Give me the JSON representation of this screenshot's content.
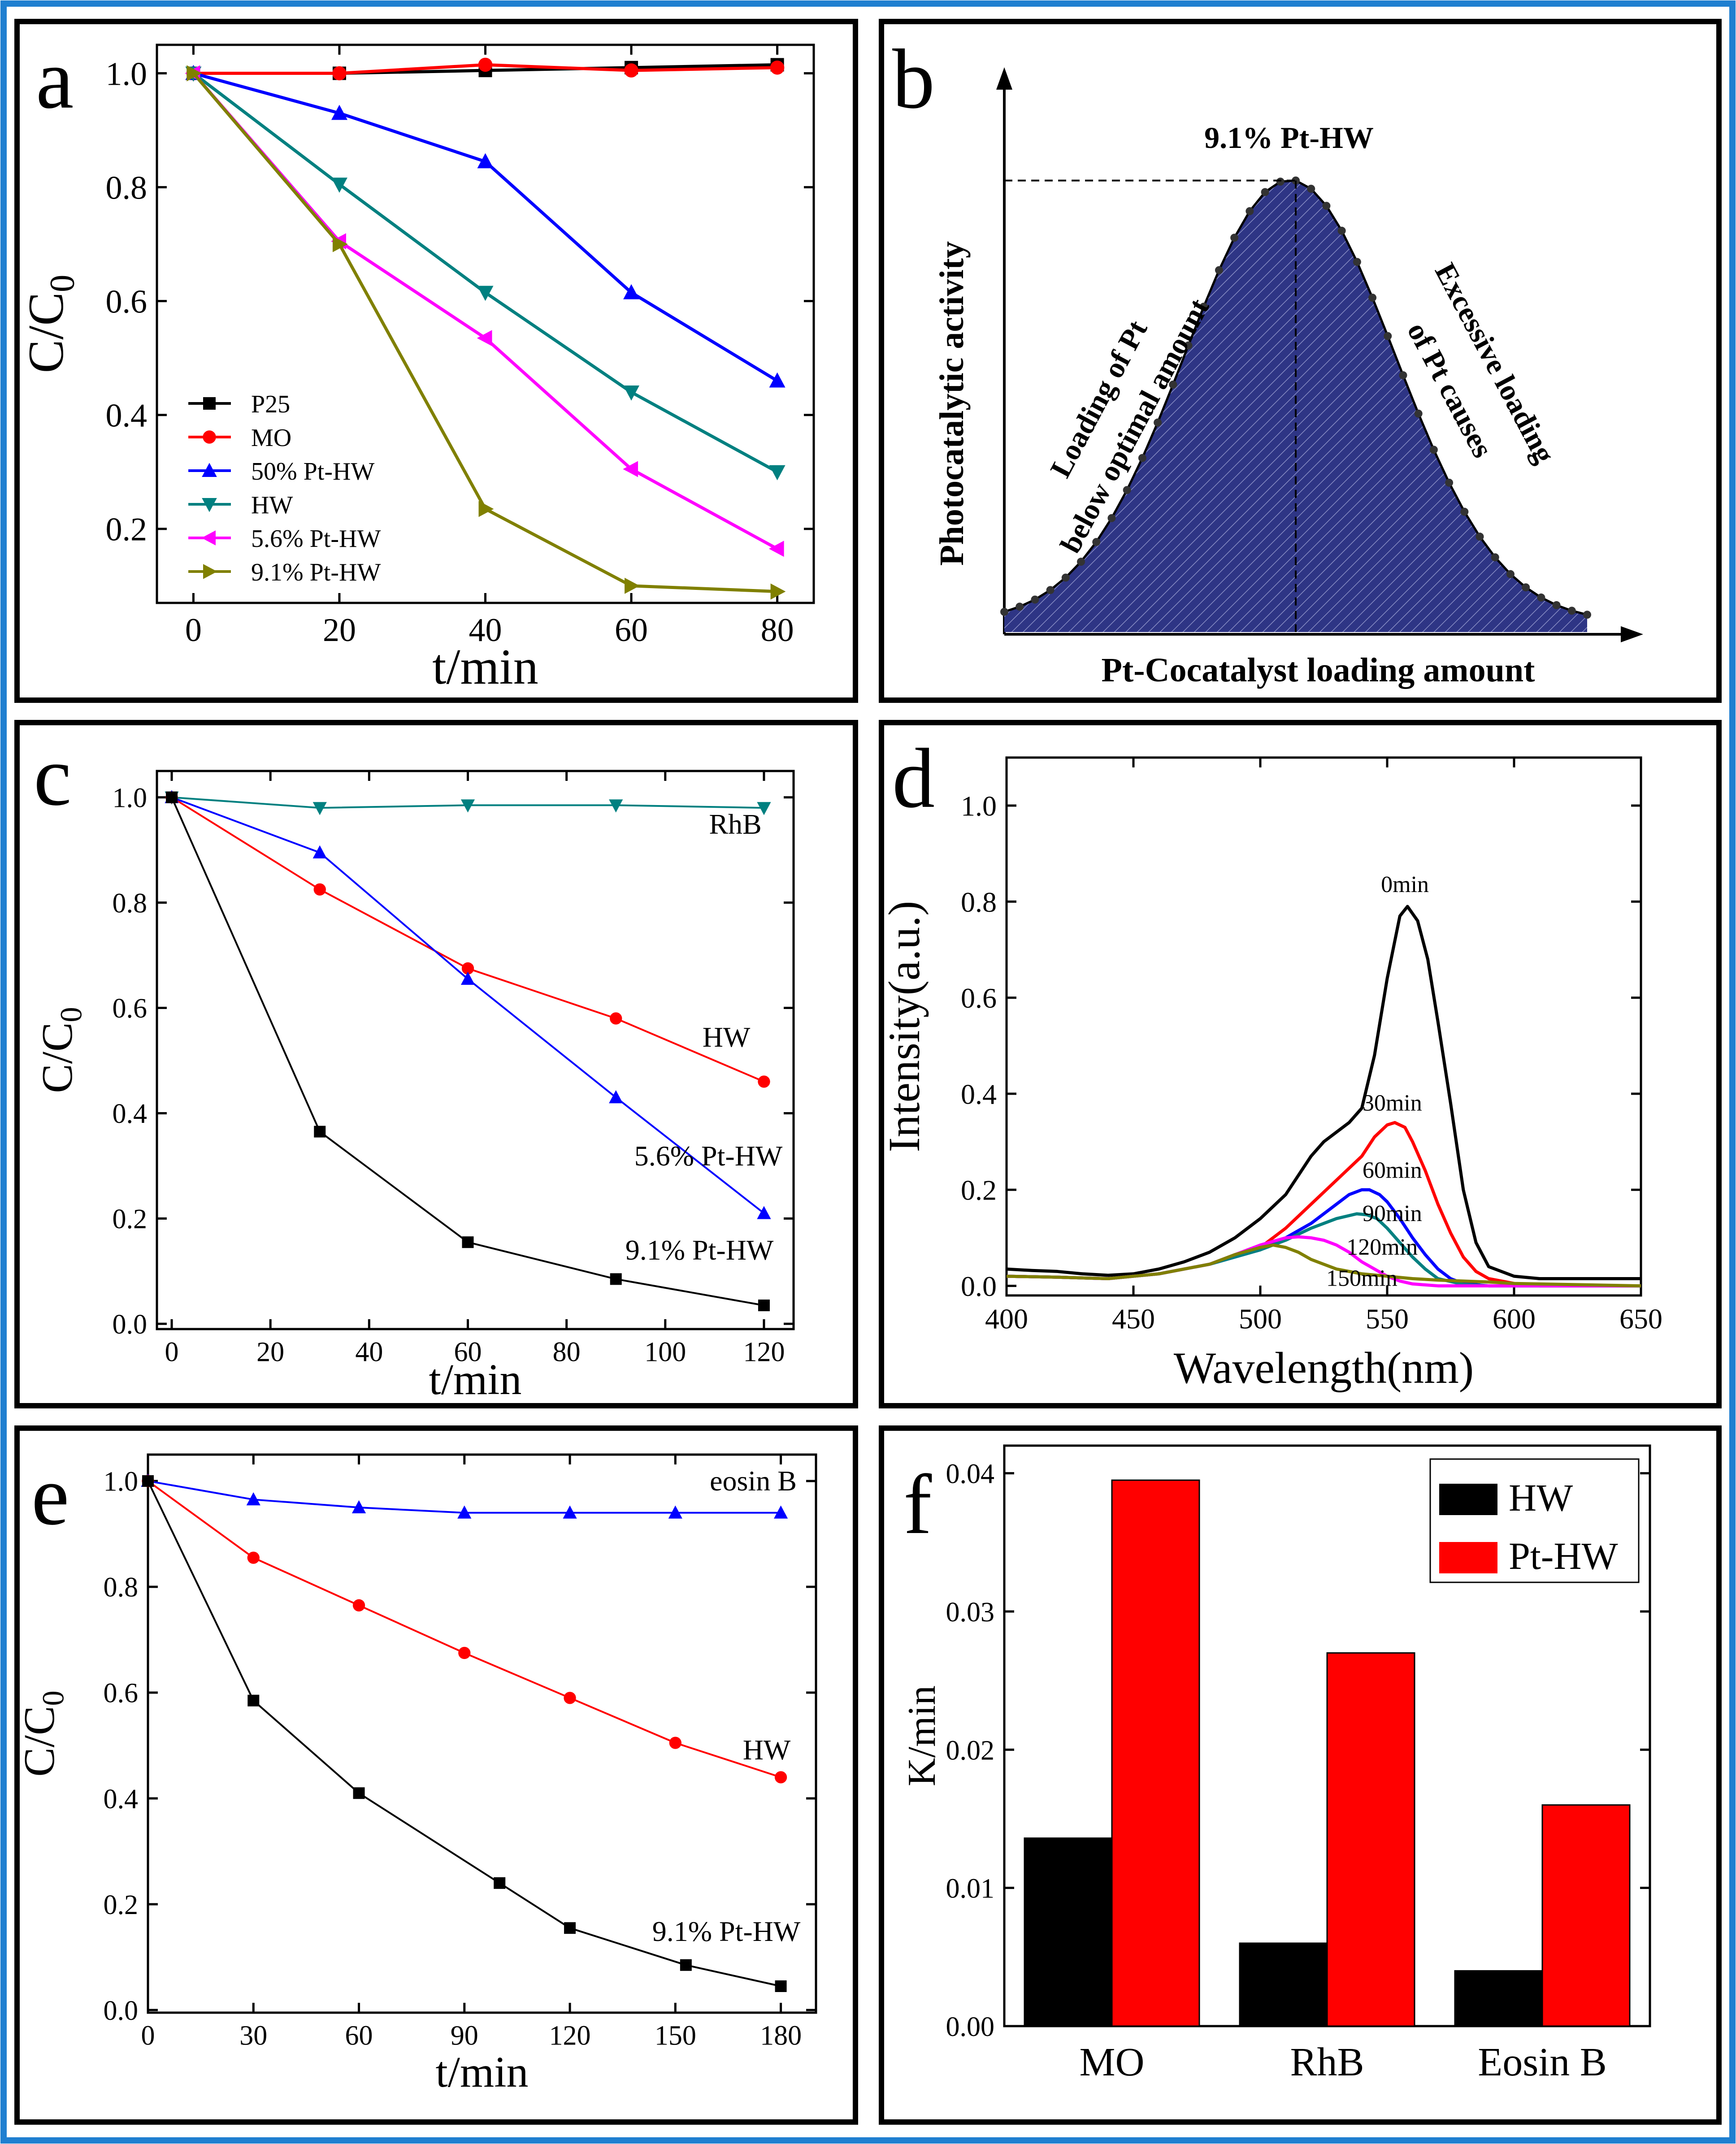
{
  "colors": {
    "outer_border": "#1f7fd0",
    "panel_border": "#000000",
    "black": "#000000",
    "red": "#ff0000",
    "blue": "#0000ff",
    "teal": "#008080",
    "magenta": "#ff00ff",
    "olive": "#808000",
    "navy_fill": "#2e3585",
    "bar_hw": "#000000",
    "bar_pthw": "#ff0000"
  },
  "chart_data": [
    {
      "panel": "a",
      "type": "line",
      "letter": "a",
      "xlabel": "t/min",
      "ylabel": "C/C",
      "ylabel_sub": "0",
      "xlim": [
        -5,
        85
      ],
      "ylim": [
        0.07,
        1.05
      ],
      "xticks": [
        0,
        20,
        40,
        60,
        80
      ],
      "yticks": [
        0.2,
        0.4,
        0.6,
        0.8,
        1.0
      ],
      "ytick_labels": [
        "0.2",
        "0.4",
        "0.6",
        "0.8",
        "1.0"
      ],
      "x": [
        0,
        20,
        40,
        60,
        80
      ],
      "legend_position": "lower-left",
      "series": [
        {
          "name": "P25",
          "color": "#000000",
          "marker": "square",
          "values": [
            1.0,
            1.0,
            1.005,
            1.01,
            1.015
          ]
        },
        {
          "name": "MO",
          "color": "#ff0000",
          "marker": "circle",
          "values": [
            1.0,
            1.0,
            1.015,
            1.005,
            1.01
          ]
        },
        {
          "name": "50% Pt-HW",
          "color": "#0000ff",
          "marker": "triangle-up",
          "values": [
            1.0,
            0.93,
            0.845,
            0.615,
            0.46
          ]
        },
        {
          "name": "HW",
          "color": "#008080",
          "marker": "triangle-down",
          "values": [
            1.0,
            0.805,
            0.615,
            0.44,
            0.3
          ]
        },
        {
          "name": "5.6% Pt-HW",
          "color": "#ff00ff",
          "marker": "triangle-left",
          "values": [
            1.0,
            0.705,
            0.535,
            0.305,
            0.165
          ]
        },
        {
          "name": "9.1% Pt-HW",
          "color": "#808000",
          "marker": "triangle-right",
          "values": [
            1.0,
            0.7,
            0.235,
            0.1,
            0.09
          ]
        }
      ]
    },
    {
      "panel": "b",
      "type": "area",
      "letter": "b",
      "title": "9.1% Pt-HW",
      "xlabel": "Pt-Cocatalyst loading amount",
      "ylabel": "Photocatalytic activity",
      "annotation_left": [
        "Loading of Pt",
        "below optimal amount"
      ],
      "annotation_right": [
        "Excessive loading",
        "of Pt causes"
      ],
      "curve": {
        "baseline": 0.02,
        "peak_height": 0.97,
        "peak_position": 0.49,
        "width": 0.18,
        "y_at_edges": 0.07,
        "points": 38
      }
    },
    {
      "panel": "c",
      "type": "line",
      "letter": "c",
      "xlabel": "t/min",
      "ylabel": "C/C",
      "ylabel_sub": "0",
      "xlim": [
        -3,
        126
      ],
      "ylim": [
        -0.01,
        1.05
      ],
      "xticks": [
        0,
        20,
        40,
        60,
        80,
        100,
        120
      ],
      "yticks": [
        0.0,
        0.2,
        0.4,
        0.6,
        0.8,
        1.0
      ],
      "ytick_labels": [
        "0.0",
        "0.2",
        "0.4",
        "0.6",
        "0.8",
        "1.0"
      ],
      "x": [
        0,
        30,
        60,
        90,
        120
      ],
      "series": [
        {
          "name": "RhB",
          "color": "#008080",
          "marker": "triangle-down",
          "values": [
            1.0,
            0.98,
            0.985,
            0.985,
            0.98
          ]
        },
        {
          "name": "HW",
          "color": "#ff0000",
          "marker": "circle",
          "values": [
            1.0,
            0.825,
            0.675,
            0.58,
            0.46
          ]
        },
        {
          "name": "5.6% Pt-HW",
          "color": "#0000ff",
          "marker": "triangle-up",
          "values": [
            1.0,
            0.895,
            0.655,
            0.43,
            0.21
          ]
        },
        {
          "name": "9.1% Pt-HW",
          "color": "#000000",
          "marker": "square",
          "values": [
            1.0,
            0.365,
            0.155,
            0.085,
            0.035
          ]
        }
      ]
    },
    {
      "panel": "d",
      "type": "line",
      "letter": "d",
      "xlabel": "Wavelength(nm)",
      "ylabel": "Intensity(a.u.)",
      "xlim": [
        400,
        650
      ],
      "ylim": [
        -0.02,
        1.1
      ],
      "xticks": [
        400,
        450,
        500,
        550,
        600,
        650
      ],
      "yticks": [
        0.0,
        0.2,
        0.4,
        0.6,
        0.8,
        1.0
      ],
      "ytick_labels": [
        "0.0",
        "0.2",
        "0.4",
        "0.6",
        "0.8",
        "1.0"
      ],
      "series": [
        {
          "name": "0min",
          "color": "#000000",
          "x": [
            400,
            410,
            420,
            430,
            440,
            450,
            460,
            470,
            480,
            490,
            500,
            510,
            515,
            520,
            525,
            530,
            535,
            540,
            545,
            550,
            555,
            558,
            562,
            566,
            570,
            575,
            580,
            585,
            590,
            600,
            610,
            620,
            630,
            640,
            650
          ],
          "values": [
            0.035,
            0.032,
            0.03,
            0.025,
            0.022,
            0.025,
            0.035,
            0.05,
            0.07,
            0.1,
            0.14,
            0.19,
            0.23,
            0.27,
            0.3,
            0.32,
            0.34,
            0.37,
            0.48,
            0.64,
            0.77,
            0.79,
            0.76,
            0.68,
            0.55,
            0.38,
            0.2,
            0.09,
            0.04,
            0.02,
            0.015,
            0.015,
            0.015,
            0.015,
            0.015
          ]
        },
        {
          "name": "30min",
          "color": "#ff0000",
          "x": [
            400,
            420,
            440,
            460,
            480,
            500,
            510,
            520,
            530,
            540,
            545,
            550,
            553,
            557,
            560,
            565,
            570,
            575,
            580,
            585,
            590,
            600,
            610,
            620,
            650
          ],
          "values": [
            0.02,
            0.018,
            0.015,
            0.025,
            0.045,
            0.08,
            0.12,
            0.17,
            0.22,
            0.27,
            0.31,
            0.335,
            0.34,
            0.33,
            0.3,
            0.24,
            0.17,
            0.11,
            0.06,
            0.03,
            0.015,
            0.005,
            0.0,
            0.0,
            0.0
          ]
        },
        {
          "name": "60min",
          "color": "#0000ff",
          "x": [
            400,
            420,
            440,
            460,
            480,
            500,
            510,
            520,
            530,
            535,
            540,
            543,
            547,
            550,
            555,
            560,
            565,
            570,
            575,
            580,
            590,
            600,
            650
          ],
          "values": [
            0.02,
            0.018,
            0.015,
            0.025,
            0.045,
            0.075,
            0.1,
            0.13,
            0.17,
            0.19,
            0.2,
            0.2,
            0.19,
            0.175,
            0.14,
            0.1,
            0.065,
            0.035,
            0.015,
            0.005,
            0.0,
            0.0,
            0.0
          ]
        },
        {
          "name": "90min",
          "color": "#008080",
          "x": [
            400,
            420,
            440,
            460,
            480,
            500,
            510,
            520,
            530,
            538,
            542,
            546,
            550,
            555,
            560,
            565,
            570,
            580,
            590,
            650
          ],
          "values": [
            0.02,
            0.018,
            0.015,
            0.025,
            0.045,
            0.075,
            0.095,
            0.12,
            0.14,
            0.15,
            0.148,
            0.14,
            0.12,
            0.09,
            0.06,
            0.035,
            0.015,
            0.003,
            0.0,
            0.0
          ]
        },
        {
          "name": "120min",
          "color": "#ff00ff",
          "x": [
            400,
            420,
            440,
            460,
            480,
            490,
            500,
            510,
            515,
            520,
            525,
            530,
            535,
            540,
            545,
            550,
            555,
            560,
            570,
            580,
            650
          ],
          "values": [
            0.02,
            0.018,
            0.015,
            0.025,
            0.045,
            0.065,
            0.085,
            0.1,
            0.102,
            0.1,
            0.095,
            0.085,
            0.07,
            0.05,
            0.035,
            0.02,
            0.01,
            0.004,
            0.0,
            0.0,
            0.0
          ]
        },
        {
          "name": "150min",
          "color": "#808000",
          "x": [
            400,
            420,
            440,
            460,
            480,
            490,
            500,
            505,
            510,
            515,
            520,
            525,
            530,
            540,
            550,
            560,
            570,
            580,
            590,
            600,
            650
          ],
          "values": [
            0.02,
            0.018,
            0.015,
            0.025,
            0.045,
            0.065,
            0.08,
            0.085,
            0.08,
            0.07,
            0.055,
            0.045,
            0.035,
            0.025,
            0.02,
            0.015,
            0.012,
            0.01,
            0.008,
            0.005,
            0.0
          ]
        }
      ],
      "curve_labels": [
        {
          "text": "0min",
          "x": 557,
          "y": 0.82
        },
        {
          "text": "30min",
          "x": 552,
          "y": 0.365
        },
        {
          "text": "60min",
          "x": 552,
          "y": 0.225
        },
        {
          "text": "90min",
          "x": 552,
          "y": 0.135
        },
        {
          "text": "120min",
          "x": 548,
          "y": 0.065
        },
        {
          "text": "150min",
          "x": 540,
          "y": 0.0
        }
      ]
    },
    {
      "panel": "e",
      "type": "line",
      "letter": "e",
      "xlabel": "t/min",
      "ylabel": "C/C",
      "ylabel_sub": "0",
      "xlim": [
        0,
        190
      ],
      "ylim": [
        -0.005,
        1.05
      ],
      "xticks": [
        0,
        30,
        60,
        90,
        120,
        150,
        180
      ],
      "yticks": [
        0.0,
        0.2,
        0.4,
        0.6,
        0.8,
        1.0
      ],
      "ytick_labels": [
        "0.0",
        "0.2",
        "0.4",
        "0.6",
        "0.8",
        "1.0"
      ],
      "series": [
        {
          "name": "eosin B",
          "color": "#0000ff",
          "marker": "triangle-up",
          "x": [
            0,
            30,
            60,
            90,
            120,
            150,
            180
          ],
          "values": [
            1.0,
            0.965,
            0.95,
            0.94,
            0.94,
            0.94,
            0.94
          ]
        },
        {
          "name": "HW",
          "color": "#ff0000",
          "marker": "circle",
          "x": [
            0,
            30,
            60,
            90,
            120,
            150,
            180
          ],
          "values": [
            1.0,
            0.855,
            0.765,
            0.675,
            0.59,
            0.505,
            0.44
          ]
        },
        {
          "name": "9.1% Pt-HW",
          "color": "#000000",
          "marker": "square",
          "x": [
            0,
            30,
            60,
            100,
            120,
            153,
            180
          ],
          "values": [
            1.0,
            0.585,
            0.41,
            0.24,
            0.155,
            0.085,
            0.045
          ]
        }
      ]
    },
    {
      "panel": "f",
      "type": "bar",
      "letter": "f",
      "xlabel": "",
      "ylabel": "K/min",
      "categories": [
        "MO",
        "RhB",
        "Eosin B"
      ],
      "ylim": [
        0,
        0.042
      ],
      "yticks": [
        0.0,
        0.01,
        0.02,
        0.03,
        0.04
      ],
      "ytick_labels": [
        "0.00",
        "0.01",
        "0.02",
        "0.03",
        "0.04"
      ],
      "legend_position": "top-right",
      "series": [
        {
          "name": "HW",
          "color": "#000000",
          "values": [
            0.0136,
            0.006,
            0.004
          ]
        },
        {
          "name": "Pt-HW",
          "color": "#ff0000",
          "values": [
            0.0395,
            0.027,
            0.016
          ]
        }
      ]
    }
  ]
}
